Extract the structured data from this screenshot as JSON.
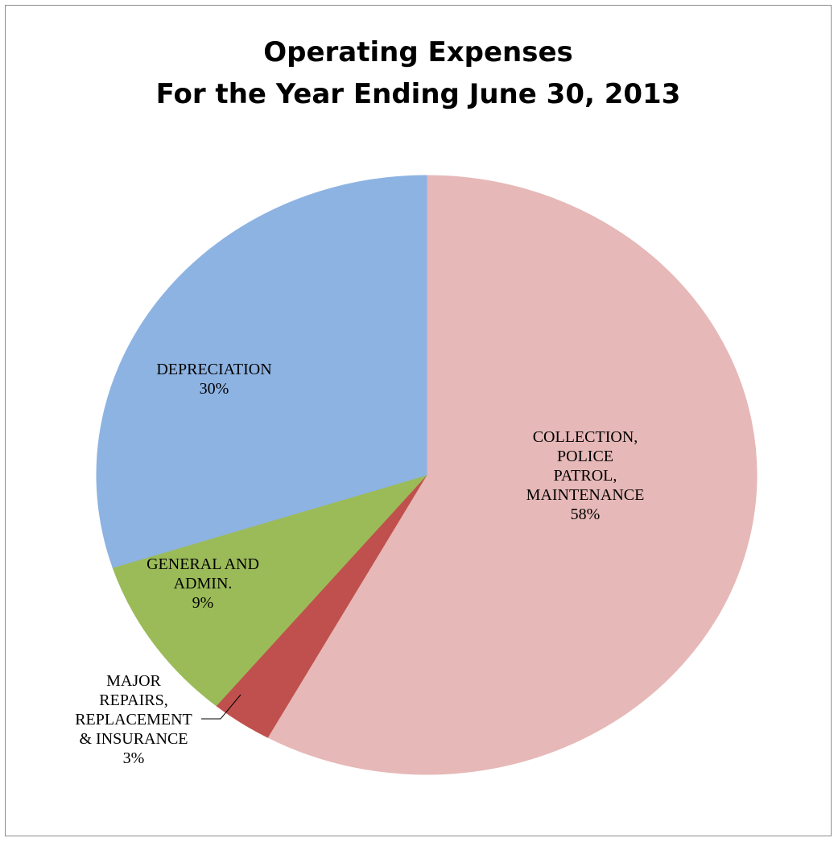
{
  "chart_data": {
    "type": "pie",
    "title_lines": [
      "Operating Expenses",
      "For the Year Ending June 30, 2013"
    ],
    "slices": [
      {
        "label_lines": [
          "COLLECTION,",
          "POLICE",
          "PATROL,",
          "MAINTENANCE"
        ],
        "percent_label": "58%",
        "value": 58,
        "color": "#e6b8b7"
      },
      {
        "label_lines": [
          "MAJOR",
          "REPAIRS,",
          "REPLACEMENT",
          "& INSURANCE"
        ],
        "percent_label": "3%",
        "value": 3,
        "color": "#c0504d"
      },
      {
        "label_lines": [
          "GENERAL AND",
          "ADMIN."
        ],
        "percent_label": "9%",
        "value": 9,
        "color": "#9bbb59"
      },
      {
        "label_lines": [
          "DEPRECIATION"
        ],
        "percent_label": "30%",
        "value": 30,
        "color": "#8db3e2"
      }
    ],
    "legend": "none",
    "data_labels": "category and percentage"
  }
}
